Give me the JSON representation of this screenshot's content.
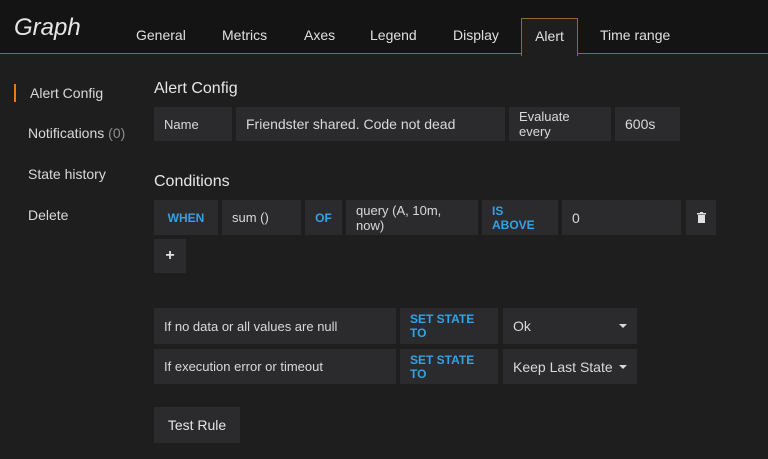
{
  "header": {
    "title": "Graph",
    "tabs": [
      "General",
      "Metrics",
      "Axes",
      "Legend",
      "Display",
      "Alert",
      "Time range"
    ],
    "active_tab": "Alert"
  },
  "sidebar": {
    "items": [
      {
        "label": "Alert Config"
      },
      {
        "label": "Notifications",
        "count": "(0)"
      },
      {
        "label": "State history"
      },
      {
        "label": "Delete"
      }
    ]
  },
  "alert_config": {
    "heading": "Alert Config",
    "name_label": "Name",
    "name_value": "Friendster shared. Code not dead",
    "evaluate_label": "Evaluate every",
    "evaluate_value": "600s"
  },
  "conditions": {
    "heading": "Conditions",
    "when": "WHEN",
    "reducer": "sum ()",
    "of": "OF",
    "query": "query (A, 10m, now)",
    "evaluator": "IS ABOVE",
    "threshold": "0"
  },
  "state_rules": [
    {
      "label": "If no data or all values are null",
      "set": "SET STATE TO",
      "value": "Ok"
    },
    {
      "label": "If execution error or timeout",
      "set": "SET STATE TO",
      "value": "Keep Last State"
    }
  ],
  "test_rule": "Test Rule",
  "colors": {
    "accent": "#eb7b18",
    "keyword": "#33a2e5"
  }
}
